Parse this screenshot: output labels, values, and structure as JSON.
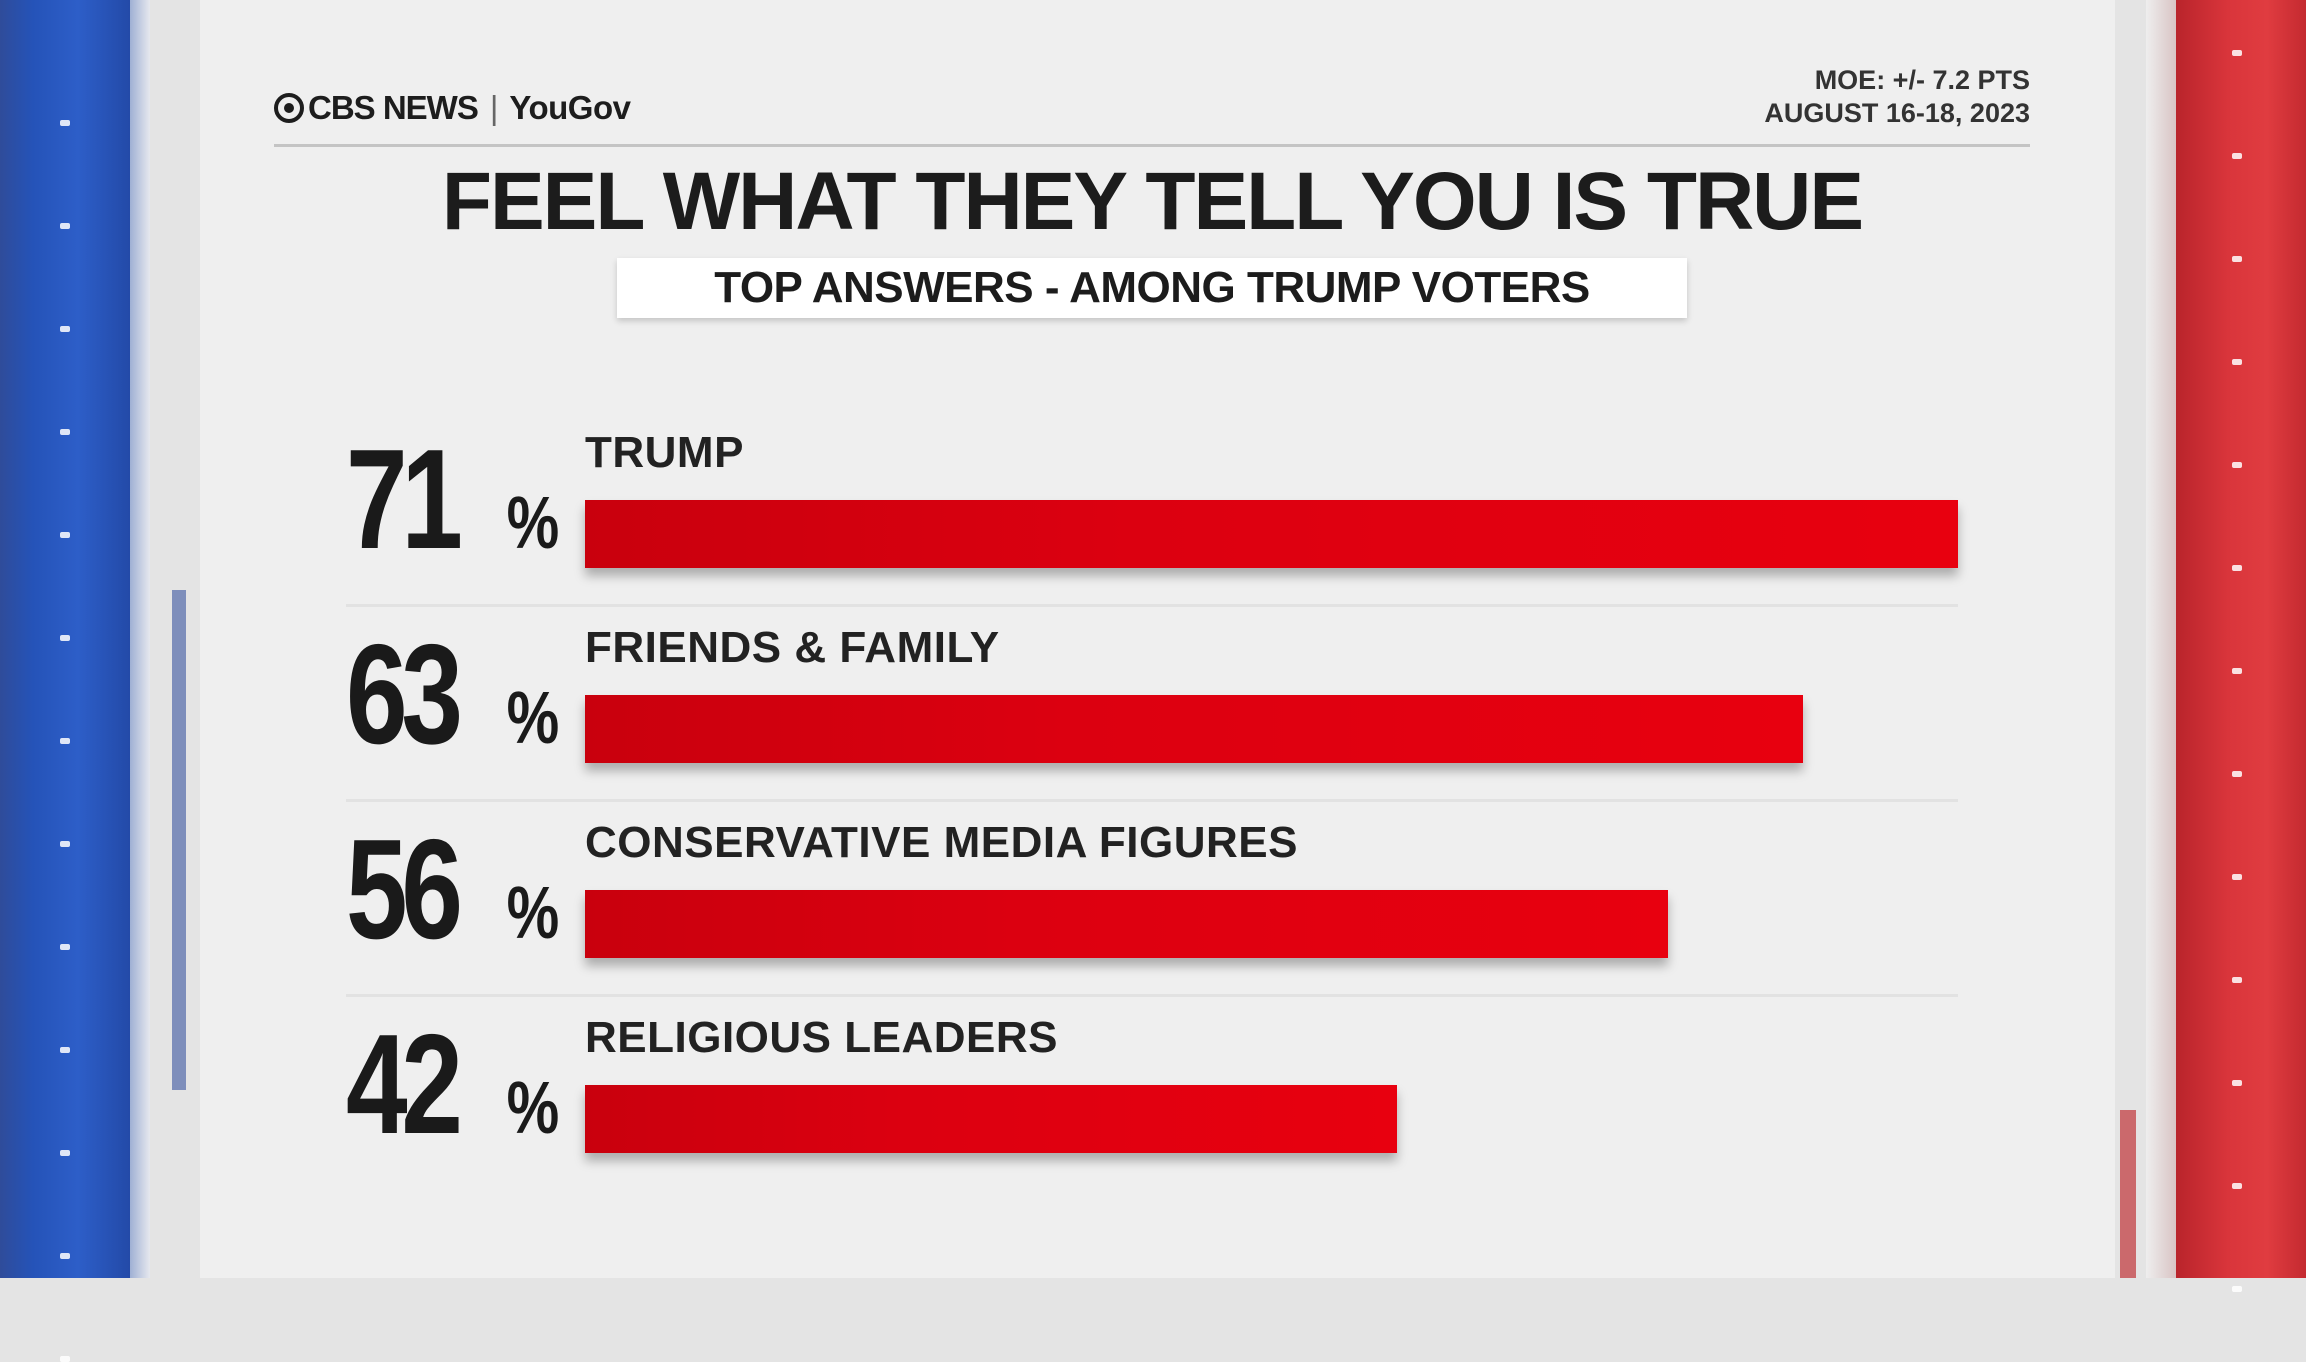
{
  "header": {
    "logo_primary": "CBS NEWS",
    "logo_secondary": "YouGov",
    "moe": "MOE: +/- 7.2 PTS",
    "date": "AUGUST 16-18, 2023"
  },
  "chart_data": {
    "type": "bar",
    "orientation": "horizontal",
    "title": "FEEL WHAT THEY TELL YOU IS TRUE",
    "subtitle": "TOP ANSWERS - AMONG TRUMP VOTERS",
    "categories": [
      "TRUMP",
      "FRIENDS & FAMILY",
      "CONSERVATIVE MEDIA FIGURES",
      "RELIGIOUS LEADERS"
    ],
    "values": [
      71,
      63,
      56,
      42
    ],
    "unit": "%",
    "xlim": [
      0,
      71
    ],
    "grid": false,
    "colors": {
      "bar": "#e0000f",
      "text": "#1c1c1c"
    }
  }
}
